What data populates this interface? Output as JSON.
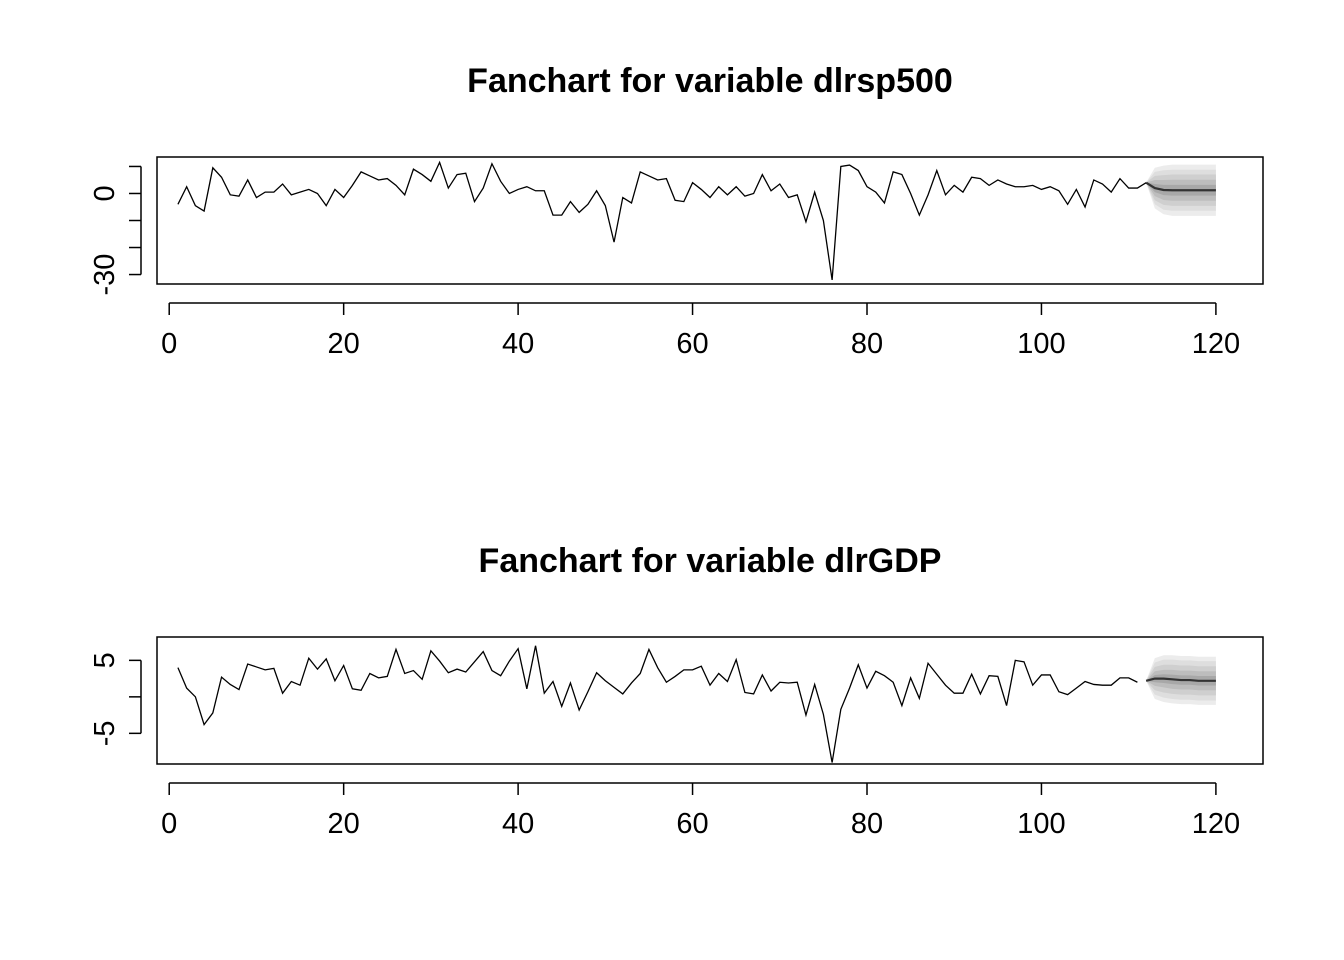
{
  "chart_data": [
    {
      "type": "line",
      "title": "Fanchart for variable dlrsp500",
      "xlabel": "",
      "ylabel": "",
      "xlim": [
        -1.4,
        125.4
      ],
      "ylim": [
        -33.5,
        13.5
      ],
      "x_ticks": [
        0,
        20,
        40,
        60,
        80,
        100,
        120
      ],
      "x_tick_labels": [
        "0",
        "20",
        "40",
        "60",
        "80",
        "100",
        "120"
      ],
      "y_ticks": [
        -30,
        -20,
        -10,
        0,
        10
      ],
      "y_tick_labels": [
        {
          "value": 0,
          "label": "0"
        },
        {
          "value": -30,
          "label": "-30"
        }
      ],
      "grid": false,
      "fan_colors": [
        "#ececec",
        "#dedede",
        "#cfcfcf",
        "#bdbdbd",
        "#a8a8a8"
      ],
      "series": [
        {
          "x_start": 1,
          "values": [
            -4,
            2.5,
            -4.5,
            -6.5,
            9.5,
            6,
            -0.5,
            -1,
            5,
            -1.5,
            0.5,
            0.5,
            3.5,
            -0.5,
            0.5,
            1.5,
            0,
            -4.5,
            1.5,
            -1.5,
            3,
            8,
            6.5,
            5,
            5.5,
            3,
            -0.5,
            9,
            7,
            4.5,
            11.5,
            2,
            7,
            7.5,
            -3,
            2,
            11,
            4.5,
            0,
            1.5,
            2.5,
            1,
            1,
            -8,
            -8,
            -3,
            -7,
            -4,
            1,
            -4.5,
            -18,
            -1.5,
            -3.5,
            8,
            6.5,
            5,
            5.5,
            -2.5,
            -3,
            4,
            1.5,
            -1.5,
            2.5,
            -0.5,
            2.5,
            -1,
            0,
            7,
            1,
            3.5,
            -1.5,
            -0.5,
            -10.5,
            0.5,
            -10,
            -32,
            10,
            10.5,
            8.5,
            2.5,
            0.5,
            -3.5,
            8,
            7,
            0,
            -8,
            -0.5,
            8.5,
            -0.5,
            3,
            0.5,
            6,
            5.5,
            3,
            5,
            3.5,
            2.5,
            2.5,
            3,
            1.5,
            2.5,
            1,
            -4,
            1.5,
            -5,
            5,
            3.5,
            0.5,
            5.5,
            2,
            2,
            4
          ]
        }
      ],
      "forecast": {
        "x": [
          112,
          113,
          114,
          115,
          116,
          117,
          118,
          119,
          120
        ],
        "median": [
          4,
          2,
          1.3,
          1.2,
          1.2,
          1.2,
          1.2,
          1.2,
          1.2
        ],
        "half_widths": [
          [
            0,
            7.5,
            9,
            9.5,
            9.5,
            9.5,
            9.5,
            9.5,
            9.5
          ],
          [
            0,
            6,
            7.3,
            7.6,
            7.6,
            7.6,
            7.6,
            7.6,
            7.6
          ],
          [
            0,
            4.5,
            5.5,
            5.8,
            5.8,
            5.8,
            5.8,
            5.8,
            5.8
          ],
          [
            0,
            3,
            3.7,
            3.9,
            3.9,
            3.9,
            3.9,
            3.9,
            3.9
          ],
          [
            0,
            1.5,
            1.9,
            2,
            2,
            2,
            2,
            2,
            2
          ]
        ]
      }
    },
    {
      "type": "line",
      "title": "Fanchart for variable dlrGDP",
      "xlabel": "",
      "ylabel": "",
      "xlim": [
        -1.4,
        125.4
      ],
      "ylim": [
        -9.2,
        8.2
      ],
      "x_ticks": [
        0,
        20,
        40,
        60,
        80,
        100,
        120
      ],
      "x_tick_labels": [
        "0",
        "20",
        "40",
        "60",
        "80",
        "100",
        "120"
      ],
      "y_ticks": [
        -5,
        0,
        5
      ],
      "y_tick_labels": [
        {
          "value": 5,
          "label": "5"
        },
        {
          "value": -5,
          "label": "-5"
        }
      ],
      "grid": false,
      "fan_colors": [
        "#ececec",
        "#dedede",
        "#cfcfcf",
        "#bdbdbd",
        "#a8a8a8"
      ],
      "series": [
        {
          "x_start": 1,
          "values": [
            4,
            1.2,
            0,
            -3.8,
            -2.2,
            2.7,
            1.7,
            1,
            4.5,
            4.1,
            3.7,
            3.9,
            0.5,
            2.1,
            1.6,
            5.3,
            3.8,
            5.2,
            2.2,
            4.3,
            1.1,
            0.9,
            3.2,
            2.6,
            2.8,
            6.5,
            3.2,
            3.6,
            2.4,
            6.3,
            4.9,
            3.3,
            3.8,
            3.4,
            4.8,
            6.2,
            3.6,
            2.9,
            4.9,
            6.6,
            1.1,
            7,
            0.5,
            2.1,
            -1.3,
            1.9,
            -1.8,
            0.7,
            3.3,
            2.2,
            1.3,
            0.4,
            1.9,
            3.2,
            6.5,
            4,
            2,
            2.8,
            3.7,
            3.7,
            4.2,
            1.6,
            3.2,
            2.1,
            5.1,
            0.6,
            0.4,
            3,
            0.8,
            2,
            1.9,
            2,
            -2.5,
            1.7,
            -2.4,
            -9,
            -1.7,
            1.2,
            4.4,
            1.2,
            3.5,
            2.9,
            2,
            -1.2,
            2.6,
            -0.2,
            4.6,
            3.1,
            1.6,
            0.5,
            0.5,
            3.1,
            0.4,
            2.9,
            2.8,
            -1.2,
            5,
            4.8,
            1.6,
            3,
            3,
            0.7,
            0.3,
            1.2,
            2.1,
            1.7,
            1.6,
            1.6,
            2.6,
            2.6,
            2
          ]
        }
      ],
      "forecast": {
        "x": [
          112,
          113,
          114,
          115,
          116,
          117,
          118,
          119,
          120
        ],
        "median": [
          2.2,
          2.5,
          2.5,
          2.4,
          2.3,
          2.3,
          2.2,
          2.2,
          2.2
        ],
        "half_widths": [
          [
            0,
            2.8,
            3.2,
            3.3,
            3.3,
            3.3,
            3.3,
            3.3,
            3.3
          ],
          [
            0,
            2.2,
            2.6,
            2.7,
            2.7,
            2.7,
            2.7,
            2.7,
            2.7
          ],
          [
            0,
            1.6,
            1.9,
            2,
            2,
            2,
            2,
            2,
            2
          ],
          [
            0,
            1,
            1.2,
            1.3,
            1.3,
            1.3,
            1.3,
            1.3,
            1.3
          ],
          [
            0,
            0.5,
            0.6,
            0.65,
            0.65,
            0.65,
            0.65,
            0.65,
            0.65
          ]
        ]
      }
    }
  ]
}
